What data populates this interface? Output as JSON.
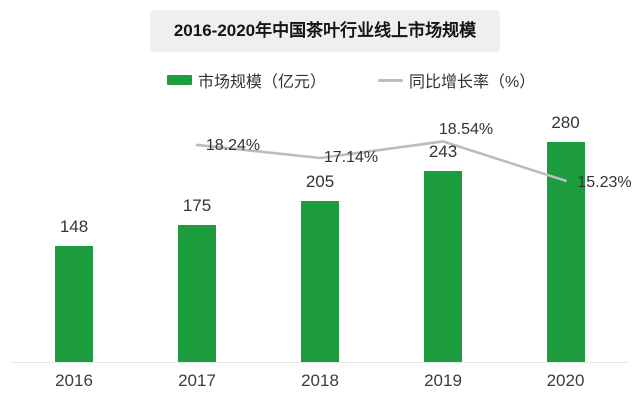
{
  "title": "2016-2020年中国茶叶行业线上市场规模",
  "legend": {
    "items": [
      {
        "label": "市场规模（亿元）",
        "swatch": "bar-swatch"
      },
      {
        "label": "同比增长率（%）",
        "swatch": "line-swatch"
      }
    ]
  },
  "colors": {
    "bar_green": "#1d9c3d",
    "line_gray": "#bcbcbc",
    "label_text": "#333333",
    "title_bg": "#efefef",
    "axis_line": "#e7e7e7"
  },
  "chart_data": {
    "type": "bar",
    "combo": "bar+line",
    "title": "2016-2020年中国茶叶行业线上市场规模",
    "categories": [
      "2016",
      "2017",
      "2018",
      "2019",
      "2020"
    ],
    "series": [
      {
        "name": "市场规模（亿元）",
        "type": "bar",
        "color": "#1d9c3d",
        "values": [
          148,
          175,
          205,
          243,
          280
        ],
        "labels": [
          "148",
          "175",
          "205",
          "243",
          "280"
        ]
      },
      {
        "name": "同比增长率（%）",
        "type": "line",
        "color": "#bcbcbc",
        "values": [
          null,
          18.24,
          17.14,
          18.54,
          15.23
        ],
        "labels": [
          "",
          "18.24%",
          "17.14%",
          "18.54%",
          "15.23%"
        ]
      }
    ],
    "xlabel": "",
    "ylabel": "",
    "bar_axis_range": [
      0,
      280
    ],
    "grid": false,
    "y_axis_visible": false,
    "legend_position": "top"
  }
}
